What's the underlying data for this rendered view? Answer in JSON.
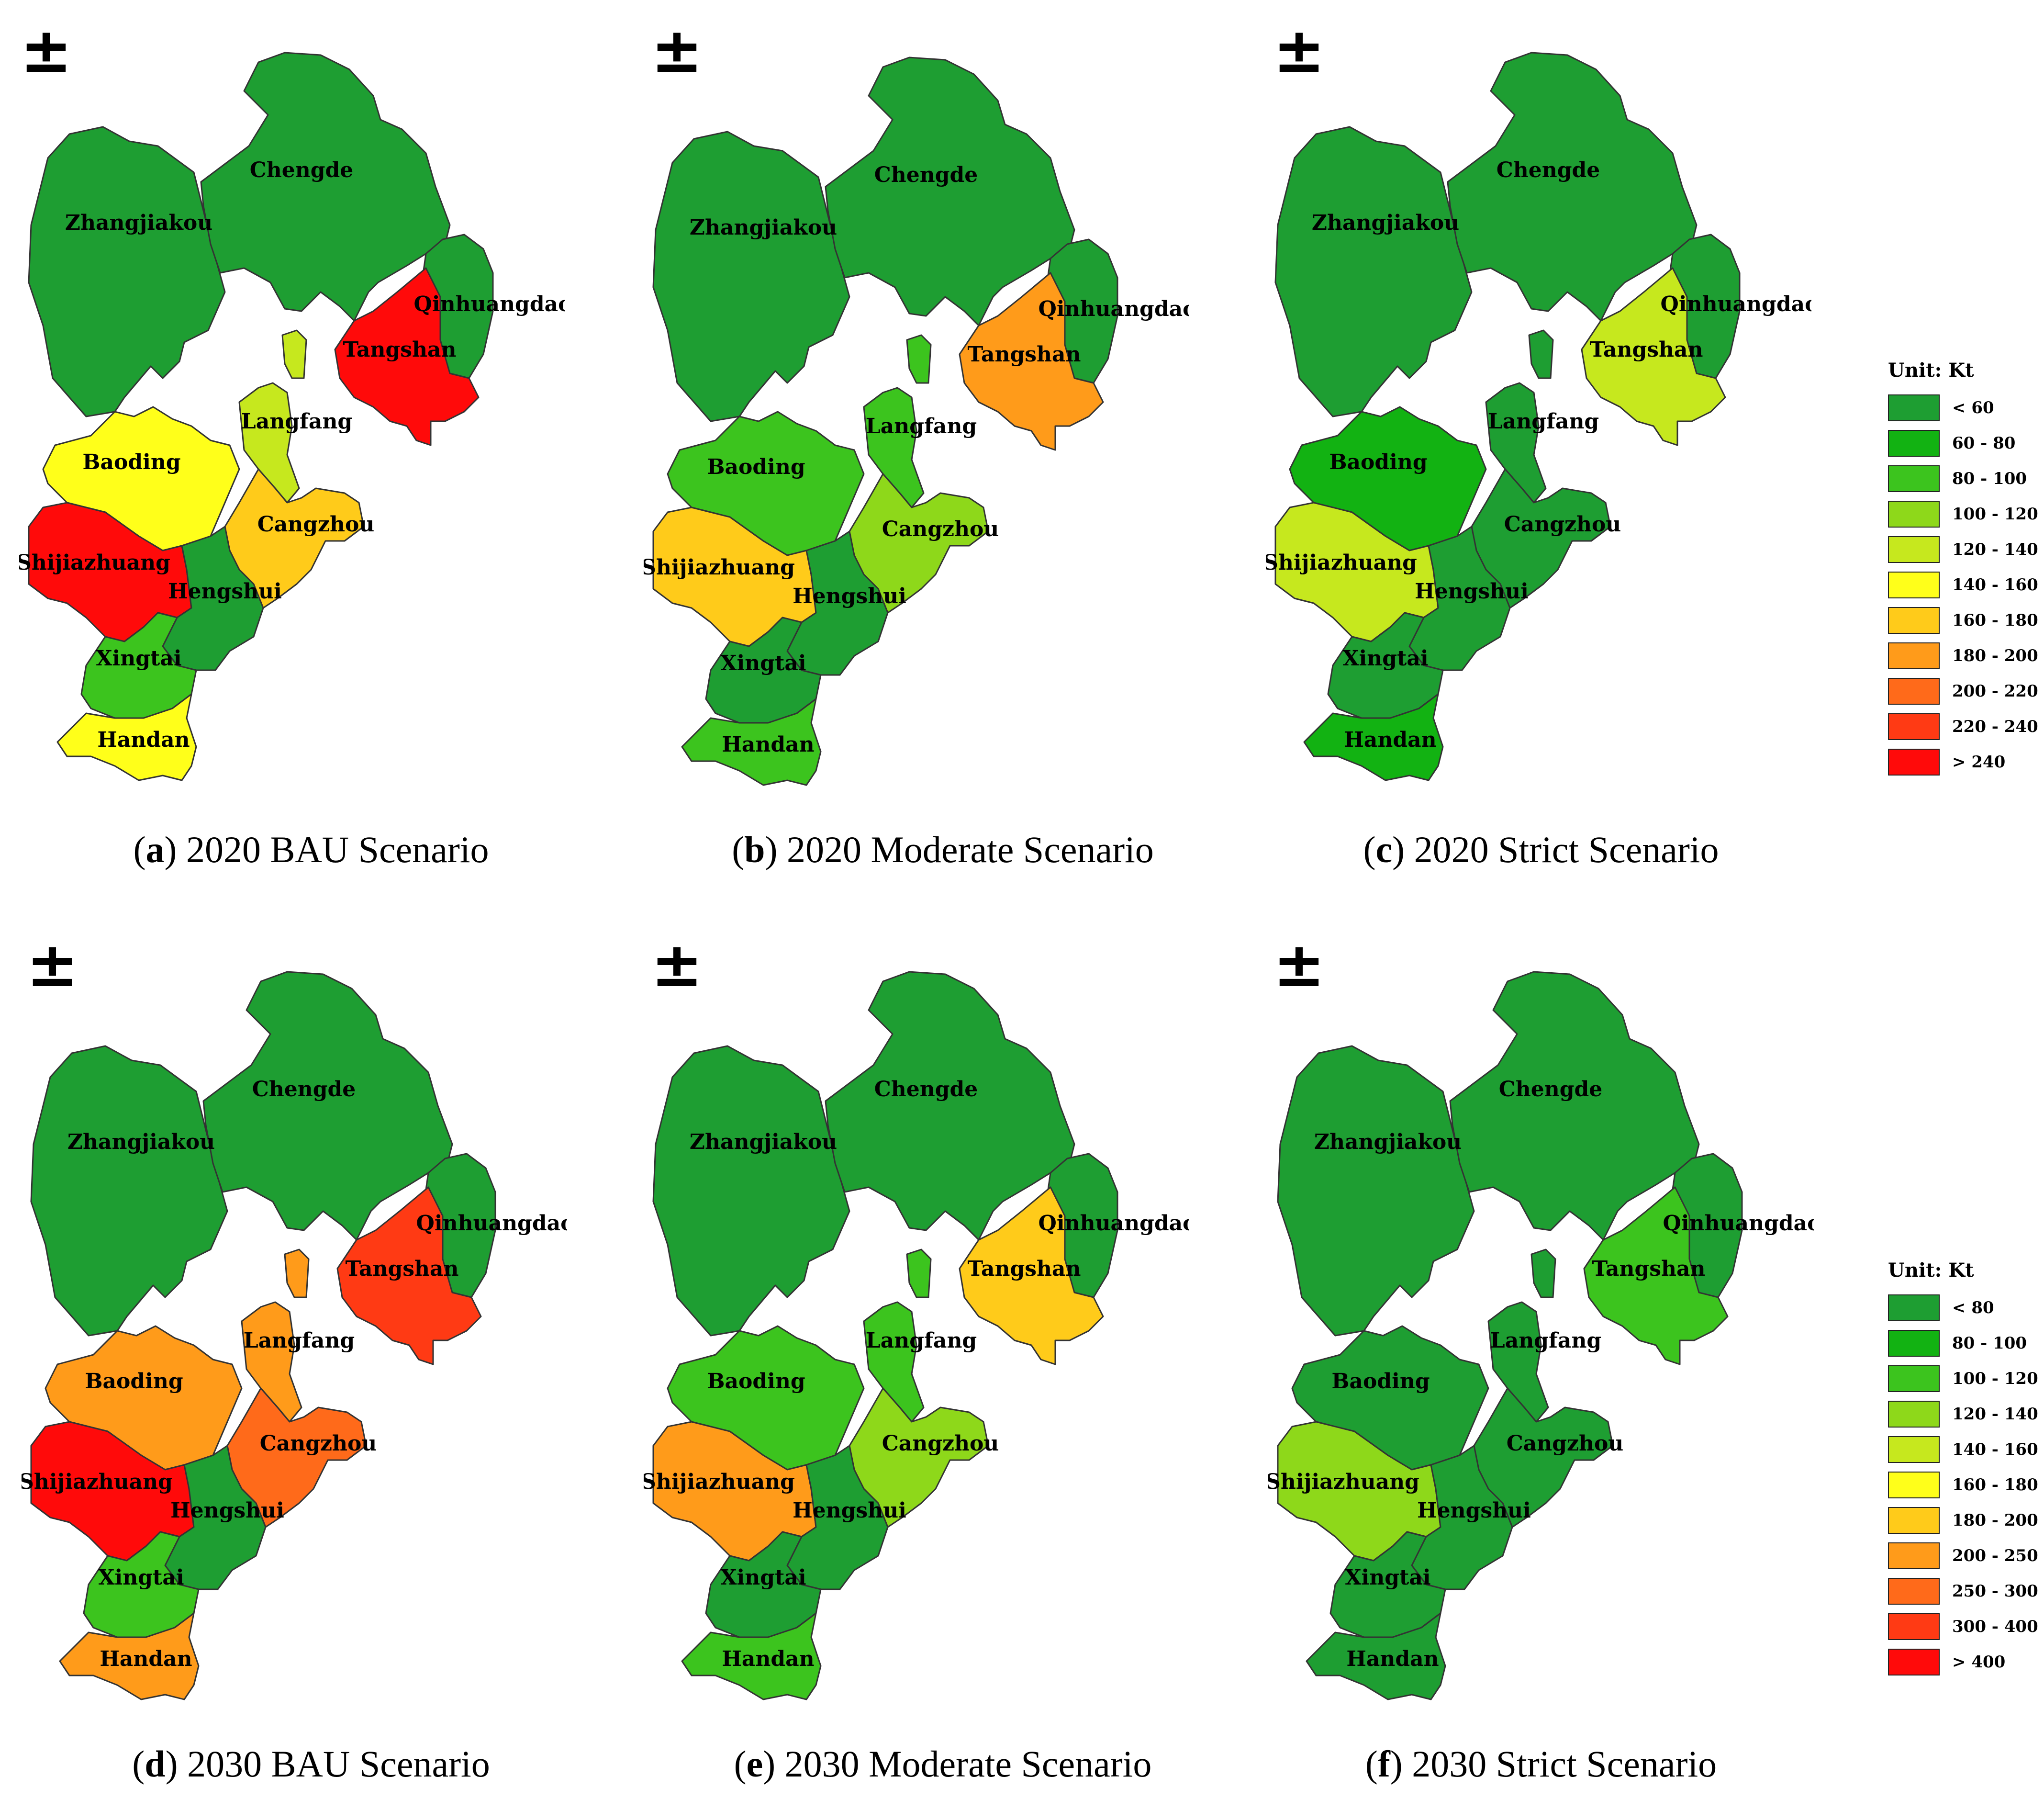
{
  "north_symbol": "±",
  "colors": {
    "c0": "#1e9e32",
    "c1": "#12b212",
    "c2": "#3cc41e",
    "c3": "#8ed81a",
    "c4": "#c6e81e",
    "c5": "#ffff1a",
    "c6": "#ffcb1a",
    "c7": "#ff9b1a",
    "c8": "#ff6a1a",
    "c9": "#ff3a14",
    "c10": "#ff0a0a"
  },
  "cities": [
    "Zhangjiakou",
    "Chengde",
    "Qinhuangdao",
    "Tangshan",
    "Langfang",
    "Baoding",
    "Cangzhou",
    "Shijiazhuang",
    "Hengshui",
    "Xingtai",
    "Handan"
  ],
  "panels": [
    {
      "letter": "a",
      "title": " 2020 BAU Scenario",
      "fills": {
        "Zhangjiakou": "c0",
        "Chengde": "c0",
        "Qinhuangdao": "c0",
        "Tangshan": "c10",
        "Langfang": "c4",
        "Baoding": "c5",
        "Cangzhou": "c6",
        "Shijiazhuang": "c10",
        "Hengshui": "c0",
        "Xingtai": "c2",
        "Handan": "c5"
      }
    },
    {
      "letter": "b",
      "title": " 2020 Moderate Scenario",
      "fills": {
        "Zhangjiakou": "c0",
        "Chengde": "c0",
        "Qinhuangdao": "c0",
        "Tangshan": "c7",
        "Langfang": "c2",
        "Baoding": "c2",
        "Cangzhou": "c3",
        "Shijiazhuang": "c6",
        "Hengshui": "c0",
        "Xingtai": "c0",
        "Handan": "c2"
      }
    },
    {
      "letter": "c",
      "title": " 2020 Strict Scenario",
      "fills": {
        "Zhangjiakou": "c0",
        "Chengde": "c0",
        "Qinhuangdao": "c0",
        "Tangshan": "c4",
        "Langfang": "c0",
        "Baoding": "c1",
        "Cangzhou": "c0",
        "Shijiazhuang": "c4",
        "Hengshui": "c0",
        "Xingtai": "c0",
        "Handan": "c1"
      }
    },
    {
      "letter": "d",
      "title": " 2030 BAU Scenario",
      "fills": {
        "Zhangjiakou": "c0",
        "Chengde": "c0",
        "Qinhuangdao": "c0",
        "Tangshan": "c9",
        "Langfang": "c7",
        "Baoding": "c7",
        "Cangzhou": "c8",
        "Shijiazhuang": "c10",
        "Hengshui": "c0",
        "Xingtai": "c2",
        "Handan": "c7"
      }
    },
    {
      "letter": "e",
      "title": " 2030 Moderate Scenario",
      "fills": {
        "Zhangjiakou": "c0",
        "Chengde": "c0",
        "Qinhuangdao": "c0",
        "Tangshan": "c6",
        "Langfang": "c2",
        "Baoding": "c2",
        "Cangzhou": "c3",
        "Shijiazhuang": "c7",
        "Hengshui": "c0",
        "Xingtai": "c0",
        "Handan": "c2"
      }
    },
    {
      "letter": "f",
      "title": " 2030 Strict Scenario",
      "fills": {
        "Zhangjiakou": "c0",
        "Chengde": "c0",
        "Qinhuangdao": "c0",
        "Tangshan": "c2",
        "Langfang": "c0",
        "Baoding": "c0",
        "Cangzhou": "c0",
        "Shijiazhuang": "c3",
        "Hengshui": "c0",
        "Xingtai": "c0",
        "Handan": "c0"
      }
    }
  ],
  "legends": [
    {
      "title": "Unit: Kt",
      "items": [
        {
          "label": "< 60",
          "color": "c0"
        },
        {
          "label": "60 - 80",
          "color": "c1"
        },
        {
          "label": "80 - 100",
          "color": "c2"
        },
        {
          "label": "100 - 120",
          "color": "c3"
        },
        {
          "label": "120 - 140",
          "color": "c4"
        },
        {
          "label": "140 - 160",
          "color": "c5"
        },
        {
          "label": "160 - 180",
          "color": "c6"
        },
        {
          "label": "180 - 200",
          "color": "c7"
        },
        {
          "label": "200 - 220",
          "color": "c8"
        },
        {
          "label": "220 - 240",
          "color": "c9"
        },
        {
          "label": "> 240",
          "color": "c10"
        }
      ]
    },
    {
      "title": "Unit: Kt",
      "items": [
        {
          "label": "< 80",
          "color": "c0"
        },
        {
          "label": "80 - 100",
          "color": "c1"
        },
        {
          "label": "100 - 120",
          "color": "c2"
        },
        {
          "label": "120 - 140",
          "color": "c3"
        },
        {
          "label": "140 - 160",
          "color": "c4"
        },
        {
          "label": "160 - 180",
          "color": "c5"
        },
        {
          "label": "180 - 200",
          "color": "c6"
        },
        {
          "label": "200 - 250",
          "color": "c7"
        },
        {
          "label": "250 - 300",
          "color": "c8"
        },
        {
          "label": "300 - 400",
          "color": "c9"
        },
        {
          "label": "> 400",
          "color": "c10"
        }
      ]
    }
  ]
}
